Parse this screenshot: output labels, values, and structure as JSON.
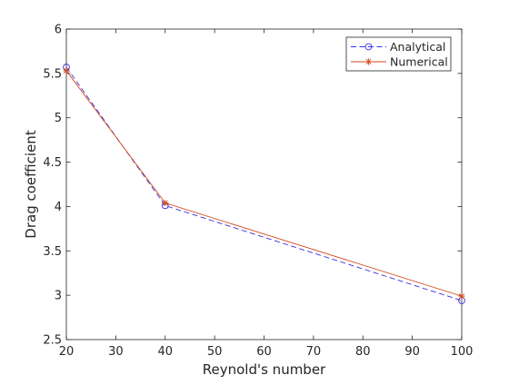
{
  "chart_data": {
    "type": "line",
    "title": "",
    "xlabel": "Reynold's number",
    "ylabel": "Drag coefficient",
    "xlim": [
      20,
      100
    ],
    "ylim": [
      2.5,
      6
    ],
    "xticks": [
      "20",
      "30",
      "40",
      "50",
      "60",
      "70",
      "80",
      "90",
      "100"
    ],
    "yticks": [
      "2.5",
      "3",
      "3.5",
      "4",
      "4.5",
      "5",
      "5.5",
      "6"
    ],
    "grid": false,
    "legend_position": "top-right",
    "x": [
      20,
      40,
      100
    ],
    "series": [
      {
        "name": "Analytical",
        "values": [
          5.57,
          4.01,
          2.94
        ],
        "color": "#3b2ee0",
        "line_style": "dashed",
        "marker": "circle"
      },
      {
        "name": "Numerical",
        "values": [
          5.53,
          4.04,
          2.99
        ],
        "color": "#d24a1c",
        "line_style": "solid",
        "marker": "asterisk"
      }
    ]
  }
}
